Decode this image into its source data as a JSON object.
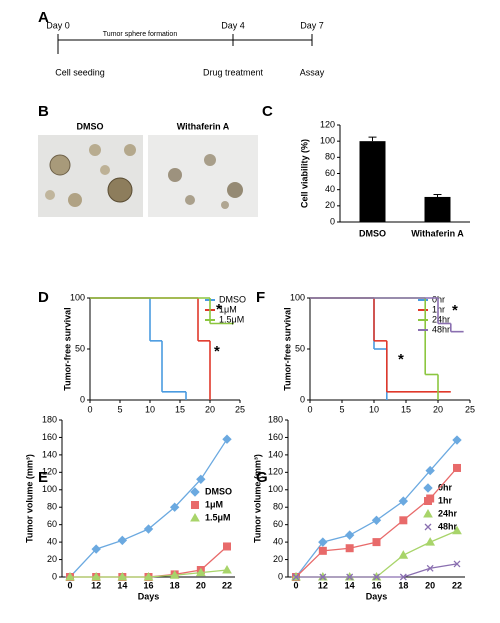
{
  "timeline": {
    "panel": "A",
    "days": [
      "Day 0",
      "Day 4",
      "Day 7"
    ],
    "phase": "Tumor sphere formation",
    "events": [
      "Cell seeding",
      "Drug treatment",
      "Assay"
    ]
  },
  "images": {
    "panel": "B",
    "labels": [
      "DMSO",
      "Withaferin A"
    ]
  },
  "chart_data": [
    {
      "type": "bar",
      "panel": "C",
      "ylabel": "Cell viability (%)",
      "categories": [
        "DMSO",
        "Withaferin A"
      ],
      "values": [
        100,
        31
      ],
      "errors": [
        5,
        3
      ],
      "color": "#000000",
      "ylim": [
        0,
        120
      ],
      "yticks": [
        0,
        20,
        40,
        60,
        80,
        100,
        120
      ]
    },
    {
      "type": "step",
      "panel": "D",
      "ylabel": "Tumor-free survival",
      "xlim": [
        0,
        25
      ],
      "xticks": [
        0,
        5,
        10,
        15,
        20,
        25
      ],
      "ylim": [
        0,
        100
      ],
      "yticks": [
        0,
        50,
        100
      ],
      "annotations": [
        "*",
        "*"
      ],
      "series": [
        {
          "name": "DMSO",
          "color": "#4a9be0",
          "x": [
            0,
            10,
            12,
            16
          ],
          "values": [
            100,
            58,
            8,
            0
          ]
        },
        {
          "name": "1μM",
          "color": "#e0392b",
          "x": [
            0,
            18,
            20
          ],
          "values": [
            100,
            58,
            0
          ]
        },
        {
          "name": "1.5μM",
          "color": "#8cc63f",
          "x": [
            0,
            20,
            24
          ],
          "values": [
            100,
            75,
            75
          ]
        }
      ]
    },
    {
      "type": "step",
      "panel": "F",
      "ylabel": "Tumor-free survival",
      "xlim": [
        0,
        25
      ],
      "xticks": [
        0,
        5,
        10,
        15,
        20,
        25
      ],
      "ylim": [
        0,
        100
      ],
      "yticks": [
        0,
        50,
        100
      ],
      "annotations": [
        "*",
        "*"
      ],
      "series": [
        {
          "name": "0hr",
          "color": "#4a9be0",
          "x": [
            0,
            10,
            12
          ],
          "values": [
            100,
            50,
            0
          ]
        },
        {
          "name": "1hr",
          "color": "#e0392b",
          "x": [
            0,
            10,
            12,
            22
          ],
          "values": [
            100,
            58,
            8,
            8
          ]
        },
        {
          "name": "24hr",
          "color": "#8cc63f",
          "x": [
            0,
            18,
            20
          ],
          "values": [
            100,
            25,
            0
          ]
        },
        {
          "name": "48hr",
          "color": "#8a6fb0",
          "x": [
            0,
            20,
            22,
            24
          ],
          "values": [
            100,
            75,
            67,
            67
          ]
        }
      ]
    },
    {
      "type": "line",
      "panel": "E",
      "ylabel": "Tumor volume (mm³)",
      "xlabel": "Days",
      "categories": [
        "0",
        "12",
        "14",
        "16",
        "18",
        "20",
        "22"
      ],
      "ylim": [
        0,
        180
      ],
      "yticks": [
        0,
        20,
        40,
        60,
        80,
        100,
        120,
        140,
        160,
        180
      ],
      "series": [
        {
          "name": "DMSO",
          "color": "#6ba9e0",
          "marker": "diamond",
          "values": [
            0,
            32,
            42,
            55,
            80,
            112,
            158
          ]
        },
        {
          "name": "1μM",
          "color": "#e86a6a",
          "marker": "square",
          "values": [
            0,
            0,
            0,
            0,
            3,
            8,
            35
          ]
        },
        {
          "name": "1.5μM",
          "color": "#a8d46a",
          "marker": "triangle",
          "values": [
            0,
            0,
            0,
            0,
            2,
            5,
            8
          ]
        }
      ]
    },
    {
      "type": "line",
      "panel": "G",
      "ylabel": "Tumor volume (mm³)",
      "xlabel": "Days",
      "categories": [
        "0",
        "12",
        "14",
        "16",
        "18",
        "20",
        "22"
      ],
      "ylim": [
        0,
        180
      ],
      "yticks": [
        0,
        20,
        40,
        60,
        80,
        100,
        120,
        140,
        160,
        180
      ],
      "series": [
        {
          "name": "0hr",
          "color": "#6ba9e0",
          "marker": "diamond",
          "values": [
            0,
            40,
            48,
            65,
            87,
            122,
            157
          ]
        },
        {
          "name": "1hr",
          "color": "#e86a6a",
          "marker": "square",
          "values": [
            0,
            30,
            33,
            40,
            65,
            90,
            125
          ]
        },
        {
          "name": "24hr",
          "color": "#a8d46a",
          "marker": "triangle",
          "values": [
            0,
            0,
            0,
            0,
            25,
            40,
            53
          ]
        },
        {
          "name": "48hr",
          "color": "#8a6fb0",
          "marker": "x",
          "values": [
            0,
            0,
            0,
            0,
            0,
            10,
            15
          ]
        }
      ]
    }
  ]
}
